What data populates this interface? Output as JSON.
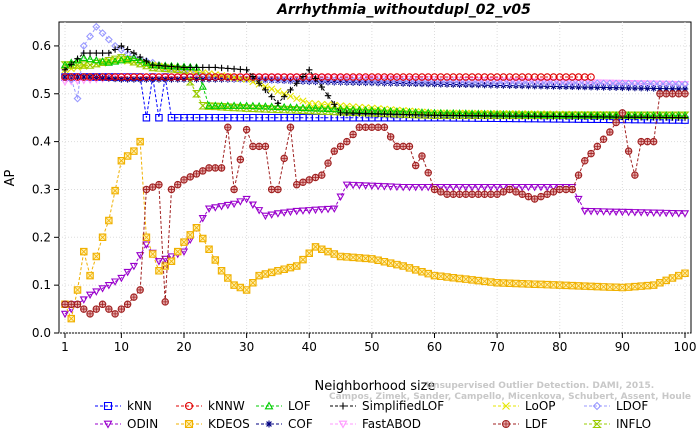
{
  "chart_data": {
    "type": "line",
    "title": "Arrhythmia_withoutdupl_02_v05",
    "xlabel": "Neighborhood size",
    "ylabel": "AP",
    "xlim": [
      1,
      100
    ],
    "ylim": [
      0.0,
      0.65
    ],
    "x_ticks": [
      "1",
      "10",
      "20",
      "30",
      "40",
      "50",
      "60",
      "70",
      "80",
      "90",
      "100"
    ],
    "y_ticks": [
      "0.0",
      "0.1",
      "0.2",
      "0.3",
      "0.4",
      "0.5",
      "0.6"
    ],
    "grid": true,
    "legend_position": "bottom",
    "series": [
      {
        "name": "kNN",
        "color": "#0000ff",
        "marker": "square",
        "row": 0,
        "col": 0,
        "keypoints": [
          [
            1,
            0.535
          ],
          [
            5,
            0.535
          ],
          [
            10,
            0.535
          ],
          [
            13,
            0.535
          ],
          [
            14,
            0.45
          ],
          [
            15,
            0.535
          ],
          [
            16,
            0.45
          ],
          [
            17,
            0.535
          ],
          [
            18,
            0.45
          ],
          [
            30,
            0.45
          ],
          [
            60,
            0.45
          ],
          [
            100,
            0.445
          ]
        ]
      },
      {
        "name": "kNNW",
        "color": "#e00000",
        "marker": "circle",
        "row": 0,
        "col": 1,
        "keypoints": [
          [
            1,
            0.535
          ],
          [
            10,
            0.535
          ],
          [
            40,
            0.535
          ],
          [
            70,
            0.535
          ],
          [
            85,
            0.535
          ]
        ]
      },
      {
        "name": "LOF",
        "color": "#00cc00",
        "marker": "triangle-up",
        "row": 0,
        "col": 2,
        "keypoints": [
          [
            1,
            0.56
          ],
          [
            4,
            0.575
          ],
          [
            8,
            0.565
          ],
          [
            12,
            0.575
          ],
          [
            15,
            0.56
          ],
          [
            22,
            0.555
          ],
          [
            24,
            0.475
          ],
          [
            30,
            0.475
          ],
          [
            40,
            0.47
          ],
          [
            50,
            0.465
          ],
          [
            60,
            0.46
          ],
          [
            80,
            0.455
          ],
          [
            100,
            0.455
          ]
        ]
      },
      {
        "name": "SimplifiedLOF",
        "color": "#000000",
        "marker": "plus",
        "row": 0,
        "col": 3,
        "keypoints": [
          [
            1,
            0.55
          ],
          [
            4,
            0.585
          ],
          [
            8,
            0.585
          ],
          [
            10,
            0.6
          ],
          [
            12,
            0.585
          ],
          [
            15,
            0.56
          ],
          [
            20,
            0.555
          ],
          [
            25,
            0.555
          ],
          [
            30,
            0.55
          ],
          [
            35,
            0.48
          ],
          [
            40,
            0.55
          ],
          [
            45,
            0.46
          ],
          [
            60,
            0.455
          ],
          [
            100,
            0.45
          ]
        ]
      },
      {
        "name": "LoOP",
        "color": "#e6e600",
        "marker": "x",
        "row": 0,
        "col": 4,
        "keypoints": [
          [
            1,
            0.55
          ],
          [
            5,
            0.56
          ],
          [
            10,
            0.57
          ],
          [
            15,
            0.56
          ],
          [
            20,
            0.55
          ],
          [
            30,
            0.53
          ],
          [
            40,
            0.48
          ],
          [
            50,
            0.47
          ],
          [
            60,
            0.46
          ],
          [
            100,
            0.455
          ]
        ]
      },
      {
        "name": "LDOF",
        "color": "#9999ff",
        "marker": "diamond",
        "row": 0,
        "col": 5,
        "keypoints": [
          [
            2,
            0.53
          ],
          [
            3,
            0.49
          ],
          [
            4,
            0.6
          ],
          [
            6,
            0.64
          ],
          [
            9,
            0.6
          ],
          [
            12,
            0.575
          ],
          [
            15,
            0.565
          ],
          [
            17,
            0.555
          ],
          [
            20,
            0.55
          ],
          [
            25,
            0.535
          ],
          [
            30,
            0.53
          ],
          [
            60,
            0.525
          ],
          [
            100,
            0.52
          ]
        ]
      },
      {
        "name": "ODIN",
        "color": "#9900cc",
        "marker": "triangle-down",
        "row": 1,
        "col": 0,
        "keypoints": [
          [
            1,
            0.04
          ],
          [
            3,
            0.06
          ],
          [
            5,
            0.08
          ],
          [
            8,
            0.1
          ],
          [
            10,
            0.115
          ],
          [
            12,
            0.14
          ],
          [
            14,
            0.185
          ],
          [
            16,
            0.15
          ],
          [
            18,
            0.16
          ],
          [
            20,
            0.17
          ],
          [
            22,
            0.22
          ],
          [
            24,
            0.26
          ],
          [
            28,
            0.27
          ],
          [
            30,
            0.28
          ],
          [
            33,
            0.245
          ],
          [
            35,
            0.25
          ],
          [
            38,
            0.255
          ],
          [
            44,
            0.26
          ],
          [
            46,
            0.31
          ],
          [
            55,
            0.305
          ],
          [
            65,
            0.305
          ],
          [
            70,
            0.305
          ],
          [
            82,
            0.305
          ],
          [
            84,
            0.255
          ],
          [
            100,
            0.25
          ]
        ]
      },
      {
        "name": "KDEOS",
        "color": "#f0b000",
        "marker": "square-x",
        "row": 1,
        "col": 1,
        "keypoints": [
          [
            1,
            0.06
          ],
          [
            2,
            0.03
          ],
          [
            3,
            0.09
          ],
          [
            4,
            0.17
          ],
          [
            5,
            0.12
          ],
          [
            7,
            0.2
          ],
          [
            8,
            0.235
          ],
          [
            10,
            0.36
          ],
          [
            12,
            0.38
          ],
          [
            13,
            0.4
          ],
          [
            14,
            0.2
          ],
          [
            16,
            0.13
          ],
          [
            18,
            0.15
          ],
          [
            20,
            0.19
          ],
          [
            22,
            0.22
          ],
          [
            24,
            0.175
          ],
          [
            26,
            0.13
          ],
          [
            28,
            0.1
          ],
          [
            30,
            0.09
          ],
          [
            32,
            0.12
          ],
          [
            35,
            0.13
          ],
          [
            38,
            0.14
          ],
          [
            41,
            0.18
          ],
          [
            45,
            0.16
          ],
          [
            50,
            0.155
          ],
          [
            55,
            0.14
          ],
          [
            60,
            0.12
          ],
          [
            70,
            0.105
          ],
          [
            80,
            0.1
          ],
          [
            90,
            0.095
          ],
          [
            95,
            0.1
          ],
          [
            100,
            0.125
          ]
        ]
      },
      {
        "name": "COF",
        "color": "#000080",
        "marker": "asterisk",
        "row": 2,
        "col": 2,
        "keypoints": [
          [
            1,
            0.535
          ],
          [
            5,
            0.535
          ],
          [
            10,
            0.53
          ],
          [
            20,
            0.53
          ],
          [
            30,
            0.53
          ],
          [
            40,
            0.525
          ],
          [
            60,
            0.52
          ],
          [
            80,
            0.515
          ],
          [
            100,
            0.51
          ]
        ]
      },
      {
        "name": "FastABOD",
        "color": "#ff99ff",
        "marker": "triangle-down-o",
        "row": 2,
        "col": 3,
        "keypoints": [
          [
            1,
            0.525
          ],
          [
            10,
            0.535
          ],
          [
            20,
            0.535
          ],
          [
            40,
            0.535
          ],
          [
            60,
            0.53
          ],
          [
            80,
            0.525
          ],
          [
            100,
            0.52
          ]
        ]
      },
      {
        "name": "LDF",
        "color": "#a02020",
        "marker": "circle-plus",
        "row": 2,
        "col": 4,
        "keypoints": [
          [
            1,
            0.06
          ],
          [
            3,
            0.06
          ],
          [
            5,
            0.04
          ],
          [
            7,
            0.06
          ],
          [
            9,
            0.04
          ],
          [
            11,
            0.06
          ],
          [
            13,
            0.09
          ],
          [
            14,
            0.3
          ],
          [
            16,
            0.31
          ],
          [
            17,
            0.065
          ],
          [
            18,
            0.3
          ],
          [
            20,
            0.32
          ],
          [
            24,
            0.345
          ],
          [
            26,
            0.345
          ],
          [
            27,
            0.43
          ],
          [
            28,
            0.3
          ],
          [
            30,
            0.425
          ],
          [
            31,
            0.39
          ],
          [
            33,
            0.39
          ],
          [
            34,
            0.3
          ],
          [
            35,
            0.3
          ],
          [
            37,
            0.43
          ],
          [
            38,
            0.31
          ],
          [
            40,
            0.32
          ],
          [
            42,
            0.33
          ],
          [
            44,
            0.38
          ],
          [
            46,
            0.4
          ],
          [
            48,
            0.43
          ],
          [
            52,
            0.43
          ],
          [
            54,
            0.39
          ],
          [
            56,
            0.39
          ],
          [
            57,
            0.35
          ],
          [
            58,
            0.37
          ],
          [
            60,
            0.3
          ],
          [
            62,
            0.29
          ],
          [
            70,
            0.29
          ],
          [
            72,
            0.3
          ],
          [
            76,
            0.28
          ],
          [
            80,
            0.3
          ],
          [
            82,
            0.3
          ],
          [
            84,
            0.36
          ],
          [
            86,
            0.39
          ],
          [
            88,
            0.42
          ],
          [
            90,
            0.46
          ],
          [
            91,
            0.38
          ],
          [
            92,
            0.33
          ],
          [
            93,
            0.4
          ],
          [
            95,
            0.4
          ],
          [
            96,
            0.5
          ],
          [
            100,
            0.5
          ]
        ]
      },
      {
        "name": "INFLO",
        "color": "#99cc00",
        "marker": "hourglass",
        "row": 2,
        "col": 5,
        "keypoints": [
          [
            1,
            0.56
          ],
          [
            5,
            0.56
          ],
          [
            10,
            0.575
          ],
          [
            15,
            0.555
          ],
          [
            20,
            0.55
          ],
          [
            23,
            0.475
          ],
          [
            30,
            0.47
          ],
          [
            40,
            0.465
          ],
          [
            60,
            0.455
          ],
          [
            100,
            0.455
          ]
        ]
      }
    ],
    "watermark": "Campos, Zimek, Sander, Campello, Micenkova, Schubert, Assent, Houle"
  },
  "watermark_line1": "Unsupervised Outlier Detection. DAMI, 2015."
}
